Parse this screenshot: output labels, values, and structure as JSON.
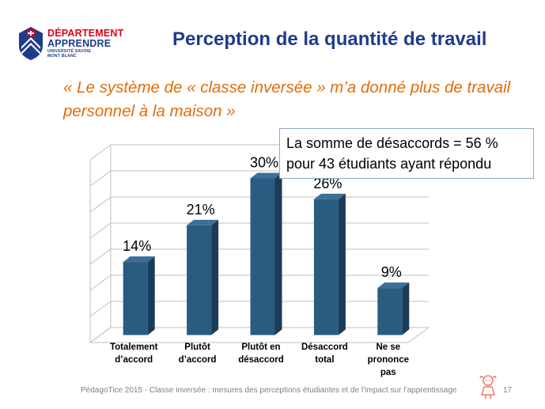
{
  "logo": {
    "line1": "DÉPARTEMENT",
    "line2": "APPRENDRE",
    "sub1": "UNIVERSITÉ SAVOIE",
    "sub2": "MONT BLANC",
    "colors": {
      "red": "#e2001a",
      "navy": "#1f3b8c"
    },
    "icon": "mountain-shield-icon"
  },
  "title": "Perception de la quantité de travail",
  "quote": "« Le système de « classe inversée » m’a donné plus de travail personnel à la maison »",
  "callout": {
    "line1": "La somme de désaccords = 56 %",
    "line2": "pour 43 étudiants ayant répondu"
  },
  "chart_data": {
    "type": "bar",
    "style": "3d-column",
    "categories": [
      "Totalement d’accord",
      "Plutôt d’accord",
      "Plutôt en désaccord",
      "Désaccord total",
      "Ne se prononce pas"
    ],
    "category_lines": [
      [
        "Totalement",
        "d’accord"
      ],
      [
        "Plutôt",
        "d’accord"
      ],
      [
        "Plutôt en",
        "désaccord"
      ],
      [
        "Désaccord",
        "total"
      ],
      [
        "Ne se",
        "prononce",
        "pas"
      ]
    ],
    "values": [
      14,
      21,
      30,
      26,
      9
    ],
    "data_labels": [
      "14%",
      "21%",
      "30%",
      "26%",
      "9%"
    ],
    "ylim": [
      0,
      35
    ],
    "grid": true,
    "legend": "none",
    "colors": {
      "bar_front": "#2a5b80",
      "bar_side": "#1b3c57",
      "bar_top": "#3a6f99",
      "grid": "#bfbfbf"
    }
  },
  "footer": {
    "text": "PédagoTice 2015 - Classe inversée : mesures des perceptions étudiantes et de l’impact sur l’apprentissage",
    "page": "17",
    "mascot_icon": "cartoon-girl-icon"
  }
}
